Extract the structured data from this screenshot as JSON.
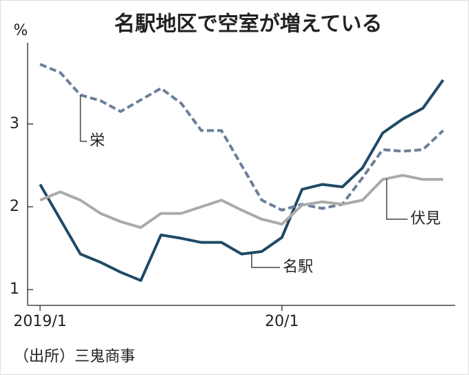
{
  "chart_data": {
    "type": "line",
    "title": "名駅地区で空室が増えている",
    "y_unit": "%",
    "source": "（出所）三鬼商事",
    "x": [
      0,
      1,
      2,
      3,
      4,
      5,
      6,
      7,
      8,
      9,
      10,
      11,
      12,
      13,
      14,
      15,
      16,
      17,
      18,
      19,
      20
    ],
    "xlim": [
      -0.62,
      20.6
    ],
    "xticks": [
      {
        "value": 0,
        "label": "2019/1"
      },
      {
        "value": 12,
        "label": "20/1"
      }
    ],
    "ylim": [
      0.81,
      3.98
    ],
    "yticks": [
      1,
      2,
      3
    ],
    "series": [
      {
        "name": "名駅",
        "color": "#1f4a66",
        "dashed": false,
        "values": [
          2.27,
          1.85,
          1.43,
          1.33,
          1.21,
          1.11,
          1.66,
          1.62,
          1.57,
          1.57,
          1.43,
          1.46,
          1.63,
          2.21,
          2.27,
          2.24,
          2.47,
          2.89,
          3.06,
          3.19,
          3.53
        ]
      },
      {
        "name": "栄",
        "color": "#6b7f98",
        "dashed": true,
        "values": [
          3.72,
          3.62,
          3.35,
          3.28,
          3.15,
          3.29,
          3.43,
          3.25,
          2.92,
          2.92,
          2.5,
          2.08,
          1.96,
          2.03,
          1.98,
          2.03,
          2.35,
          2.69,
          2.67,
          2.69,
          2.92
        ]
      },
      {
        "name": "伏見",
        "color": "#aaaaaa",
        "dashed": false,
        "values": [
          2.08,
          2.18,
          2.08,
          1.92,
          1.82,
          1.75,
          1.92,
          1.92,
          2.0,
          2.08,
          1.96,
          1.85,
          1.79,
          2.02,
          2.06,
          2.03,
          2.08,
          2.33,
          2.38,
          2.33,
          2.33
        ]
      }
    ]
  }
}
